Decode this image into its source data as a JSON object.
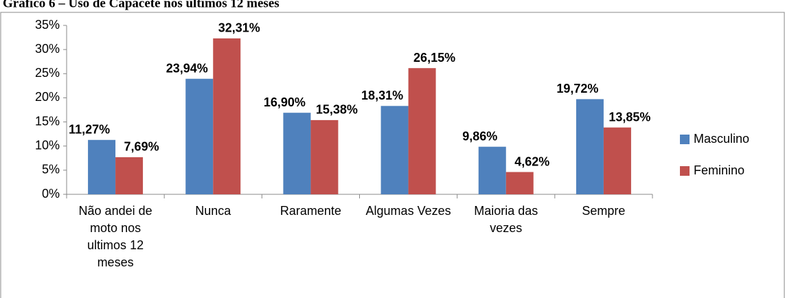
{
  "chart_data": {
    "type": "bar",
    "title": "Gráfico 6 – Uso de Capacete nos últimos 12 meses",
    "categories": [
      "Não andei de moto nos ultimos 12 meses",
      "Nunca",
      "Raramente",
      "Algumas Vezes",
      "Maioria das vezes",
      "Sempre"
    ],
    "series": [
      {
        "name": "Masculino",
        "color": "#4f81bd",
        "values": [
          11.27,
          23.94,
          16.9,
          18.31,
          9.86,
          19.72
        ],
        "value_labels": [
          "11,27%",
          "23,94%",
          "16,90%",
          "18,31%",
          "9,86%",
          "19,72%"
        ]
      },
      {
        "name": "Feminino",
        "color": "#c0504d",
        "values": [
          7.69,
          32.31,
          15.38,
          26.15,
          4.62,
          13.85
        ],
        "value_labels": [
          "7,69%",
          "32,31%",
          "15,38%",
          "26,15%",
          "4,62%",
          "13,85%"
        ]
      }
    ],
    "ylim": [
      0,
      35
    ],
    "yticks": [
      {
        "value": 0,
        "label": "0%"
      },
      {
        "value": 5,
        "label": "5%"
      },
      {
        "value": 10,
        "label": "10%"
      },
      {
        "value": 15,
        "label": "15%"
      },
      {
        "value": 20,
        "label": "20%"
      },
      {
        "value": 25,
        "label": "25%"
      },
      {
        "value": 30,
        "label": "30%"
      },
      {
        "value": 35,
        "label": "35%"
      }
    ],
    "grid": false,
    "legend": "right"
  }
}
